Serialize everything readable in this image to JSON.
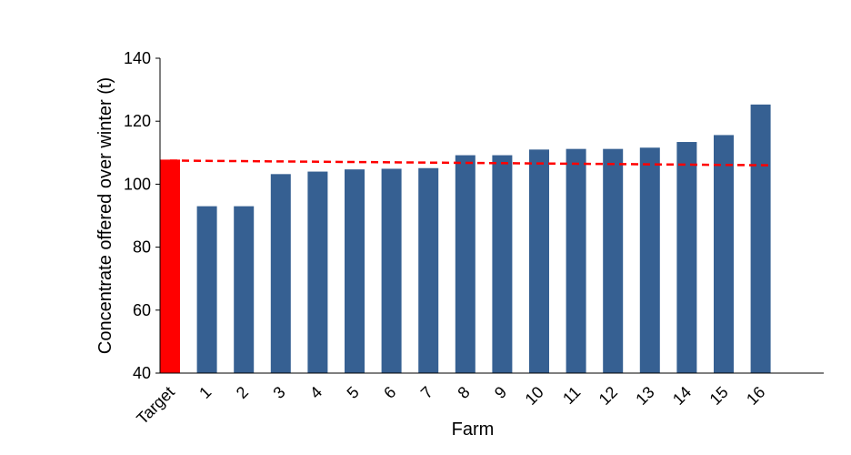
{
  "chart_data": {
    "type": "bar",
    "title": "",
    "xlabel": "Farm",
    "ylabel": "Concentrate offered over winter (t)",
    "ylim": [
      40,
      140
    ],
    "yticks": [
      40,
      60,
      80,
      100,
      120,
      140
    ],
    "categories": [
      "Target",
      "1",
      "2",
      "3",
      "4",
      "5",
      "6",
      "7",
      "8",
      "9",
      "10",
      "11",
      "12",
      "13",
      "14",
      "15",
      "16"
    ],
    "values": [
      107.8,
      93,
      93,
      103.2,
      104,
      104.7,
      104.9,
      105.1,
      109.2,
      109.2,
      111,
      111.2,
      111.2,
      111.6,
      113.4,
      115.6,
      125.3
    ],
    "bar_colors": [
      "#ff0000",
      "#366092",
      "#366092",
      "#366092",
      "#366092",
      "#366092",
      "#366092",
      "#366092",
      "#366092",
      "#366092",
      "#366092",
      "#366092",
      "#366092",
      "#366092",
      "#366092",
      "#366092",
      "#366092"
    ],
    "trend_line": {
      "style": "dashed",
      "color": "#ff0000",
      "start_value": 107.5,
      "end_value": 106
    },
    "grid": false,
    "legend": "none"
  }
}
